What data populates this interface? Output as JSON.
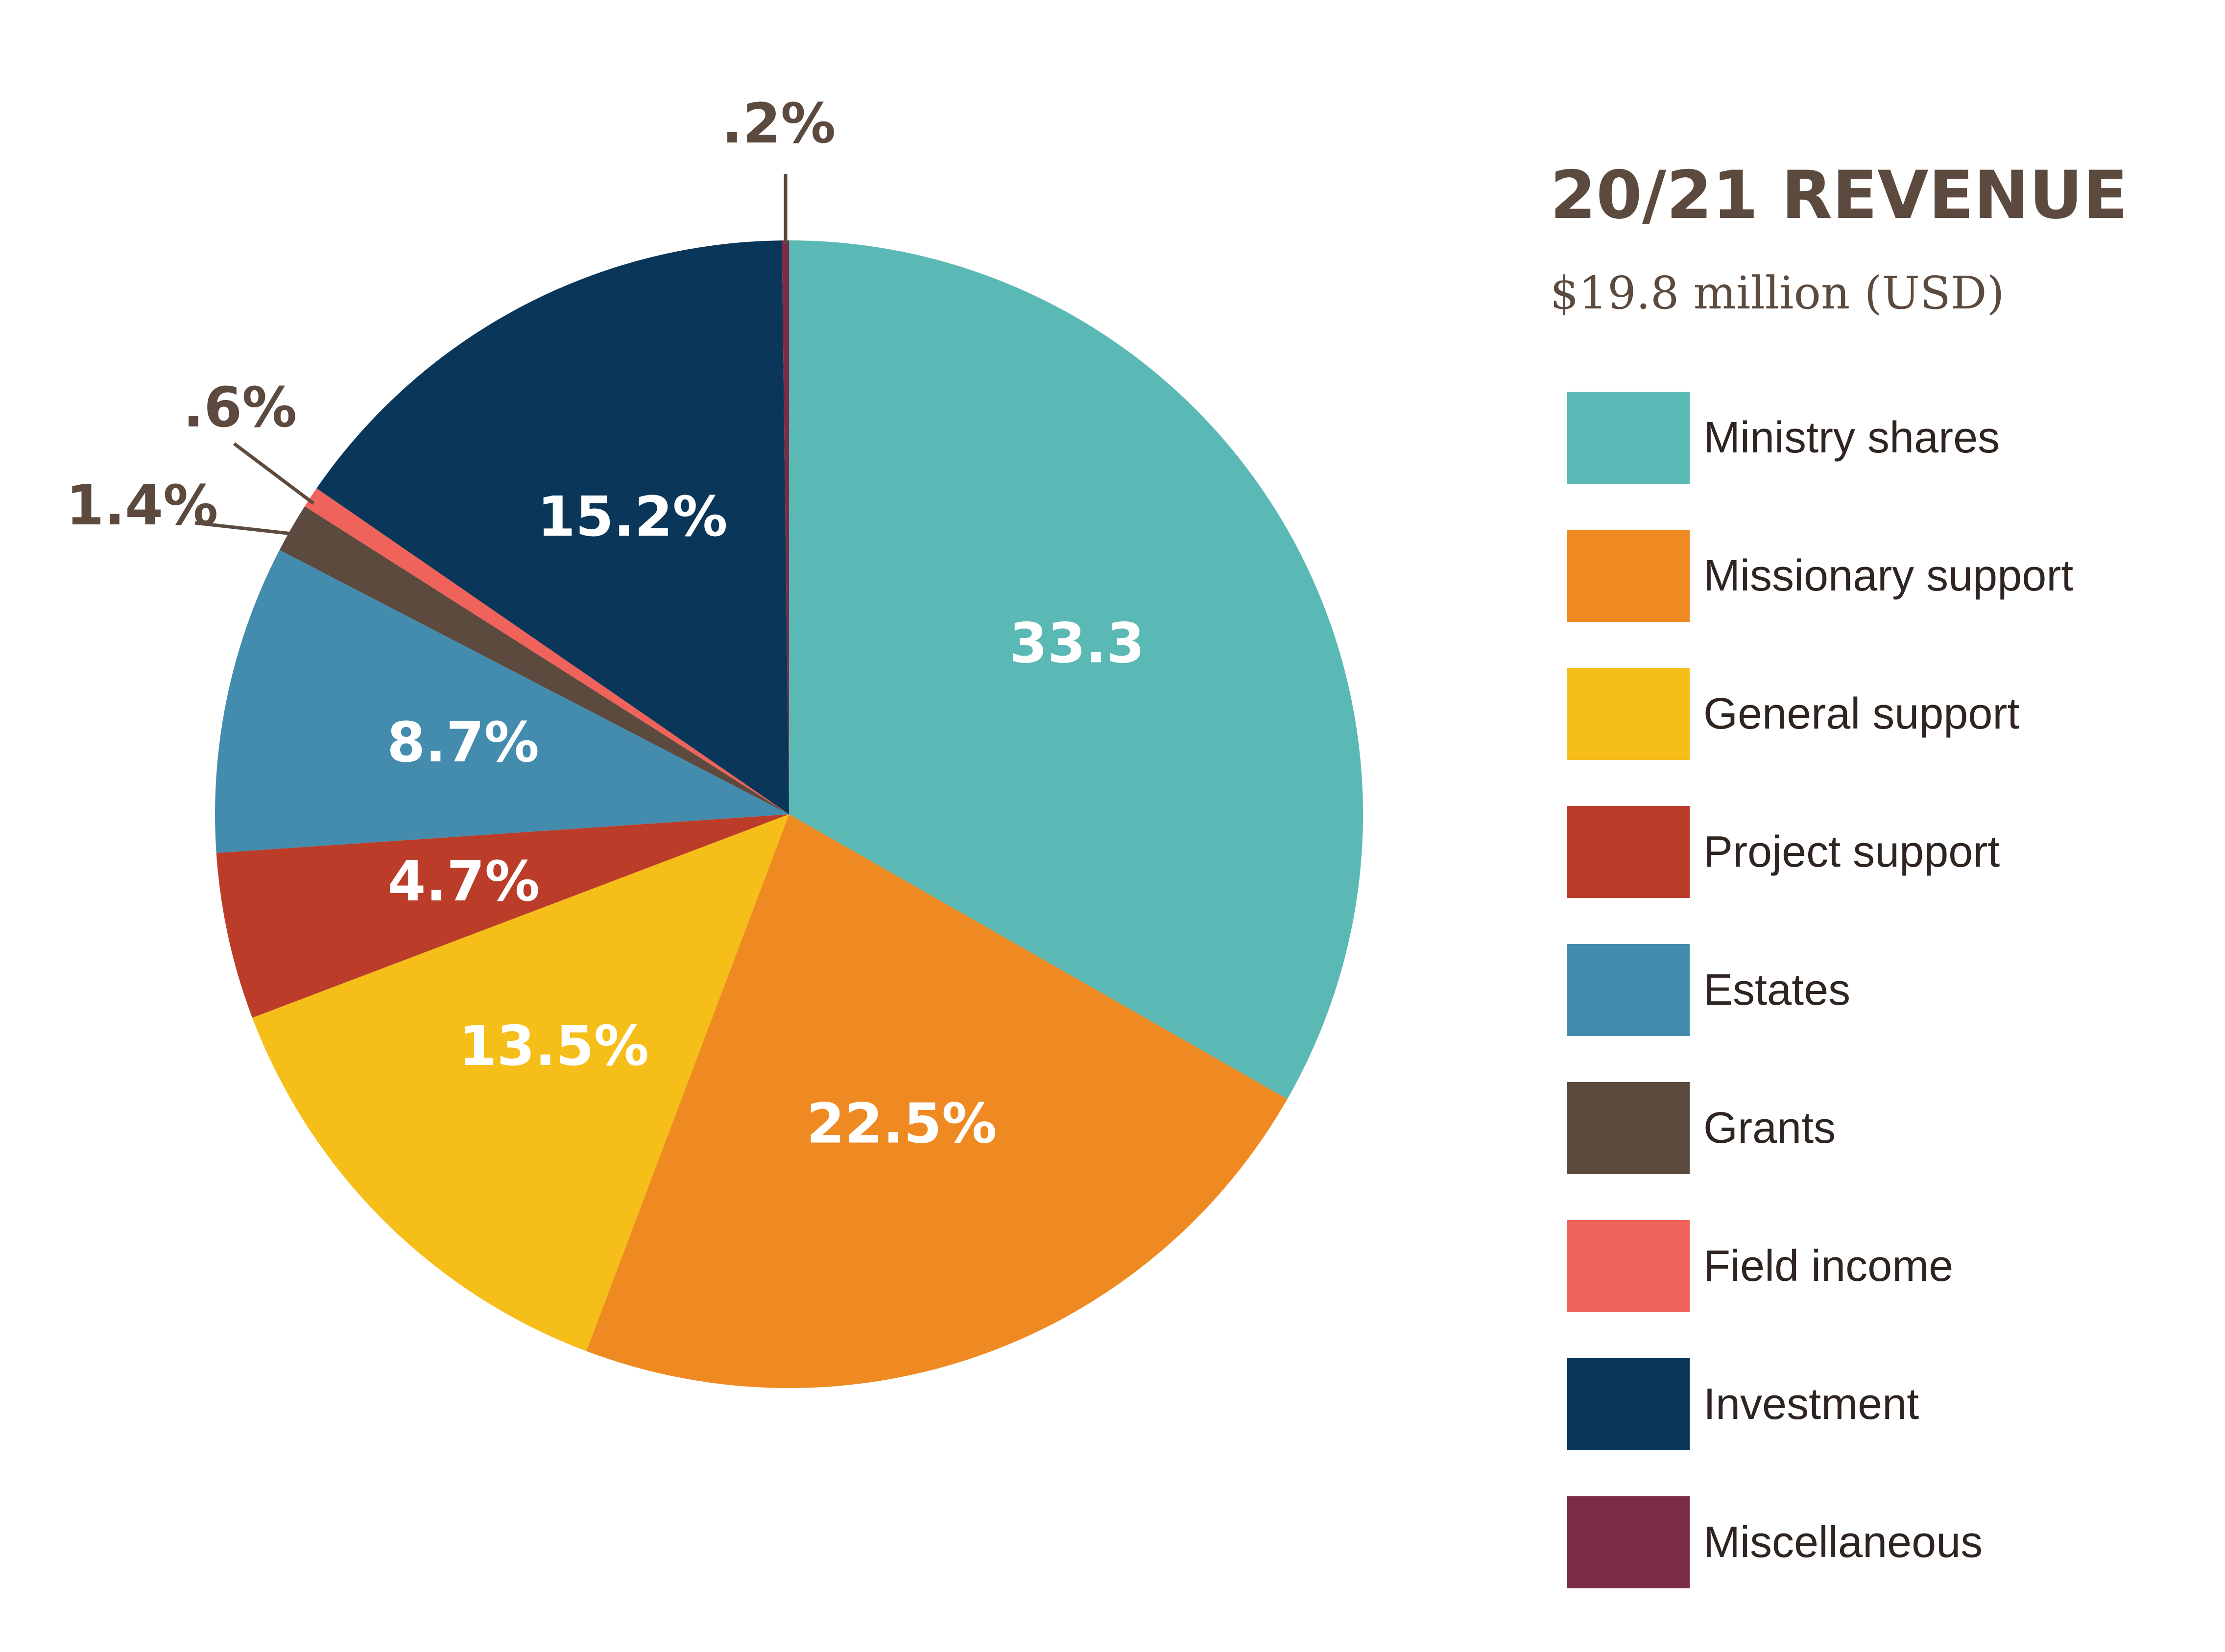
{
  "chart_data": {
    "type": "pie",
    "title": "20/21 REVENUE",
    "subtitle": "$19.8 million (USD)",
    "legend_position": "right",
    "slices": [
      {
        "name": "Ministry shares",
        "value": 33.3,
        "label": "33.3",
        "color": "#5bb9b5",
        "label_inside": true
      },
      {
        "name": "Missionary support",
        "value": 22.5,
        "label": "22.5%",
        "color": "#ef8a22",
        "label_inside": true
      },
      {
        "name": "General support",
        "value": 13.5,
        "label": "13.5%",
        "color": "#f5be19",
        "label_inside": true
      },
      {
        "name": "Project support",
        "value": 4.7,
        "label": "4.7%",
        "color": "#bb3d29",
        "label_inside": true
      },
      {
        "name": "Estates",
        "value": 8.7,
        "label": "8.7%",
        "color": "#438cae",
        "label_inside": true
      },
      {
        "name": "Grants",
        "value": 1.4,
        "label": "1.4%",
        "color": "#5c4a3e",
        "label_inside": false
      },
      {
        "name": "Field income",
        "value": 0.6,
        "label": ".6%",
        "color": "#ef635a",
        "label_inside": false
      },
      {
        "name": "Investment",
        "value": 15.2,
        "label": "15.2%",
        "color": "#093659",
        "label_inside": true
      },
      {
        "name": "Miscellaneous",
        "value": 0.2,
        "label": ".2%",
        "color": "#7a2b45",
        "label_inside": false
      }
    ]
  }
}
